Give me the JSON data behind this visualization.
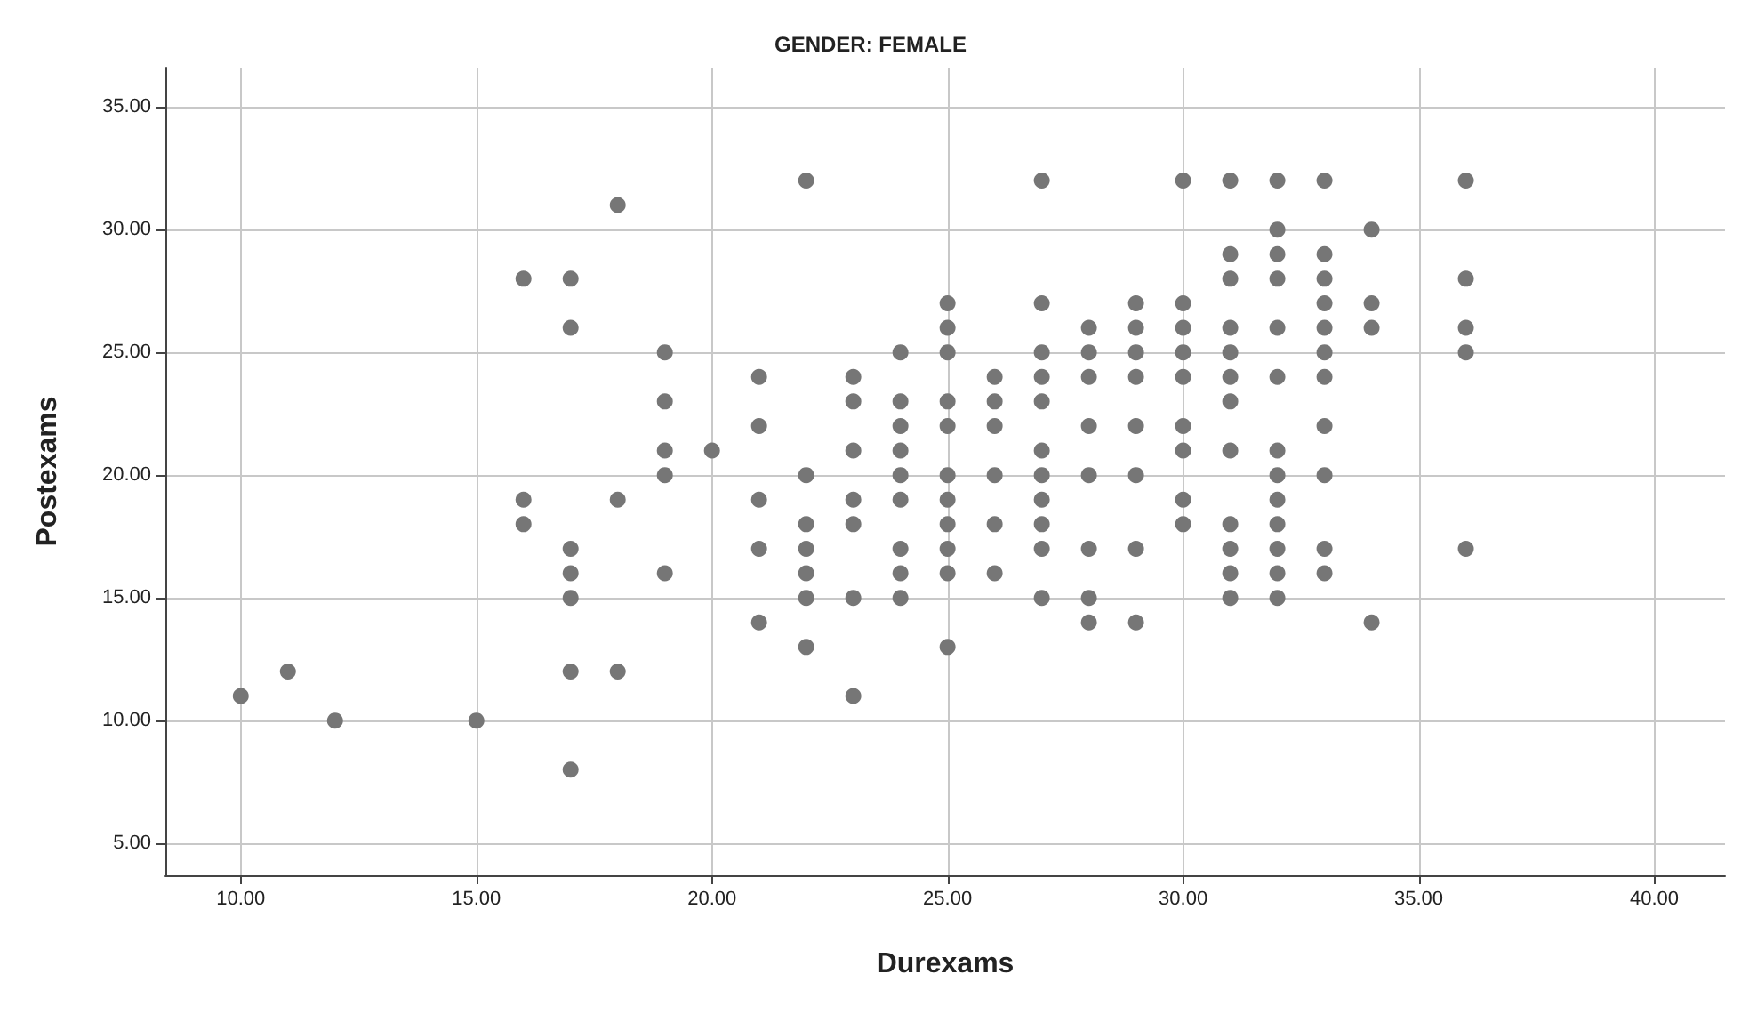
{
  "chart_data": {
    "type": "scatter",
    "title": "GENDER: FEMALE",
    "xlabel": "Durexams",
    "ylabel": "Postexams",
    "xlim": [
      8.4,
      41.5
    ],
    "ylim": [
      3.7,
      36.6
    ],
    "xticks": [
      {
        "value": 10,
        "label": "10.00"
      },
      {
        "value": 15,
        "label": "15.00"
      },
      {
        "value": 20,
        "label": "20.00"
      },
      {
        "value": 25,
        "label": "25.00"
      },
      {
        "value": 30,
        "label": "30.00"
      },
      {
        "value": 35,
        "label": "35.00"
      },
      {
        "value": 40,
        "label": "40.00"
      }
    ],
    "yticks": [
      {
        "value": 5,
        "label": "5.00"
      },
      {
        "value": 10,
        "label": "10.00"
      },
      {
        "value": 15,
        "label": "15.00"
      },
      {
        "value": 20,
        "label": "20.00"
      },
      {
        "value": 25,
        "label": "25.00"
      },
      {
        "value": 30,
        "label": "30.00"
      },
      {
        "value": 35,
        "label": "35.00"
      }
    ],
    "grid": true,
    "marker": "circle",
    "series": [
      {
        "color": "#767676",
        "x": [
          10,
          11,
          12,
          15,
          16,
          16,
          16,
          17,
          17,
          17,
          17,
          17,
          17,
          17,
          18,
          18,
          18,
          19,
          19,
          19,
          19,
          19,
          20,
          21,
          21,
          21,
          21,
          21,
          22,
          22,
          22,
          22,
          22,
          22,
          22,
          23,
          23,
          23,
          23,
          23,
          23,
          23,
          24,
          24,
          24,
          24,
          24,
          24,
          24,
          24,
          24,
          25,
          25,
          25,
          25,
          25,
          25,
          25,
          25,
          25,
          25,
          25,
          26,
          26,
          26,
          26,
          26,
          26,
          27,
          27,
          27,
          27,
          27,
          27,
          27,
          27,
          27,
          27,
          27,
          28,
          28,
          28,
          28,
          28,
          28,
          28,
          28,
          29,
          29,
          29,
          29,
          29,
          29,
          29,
          29,
          30,
          30,
          30,
          30,
          30,
          30,
          30,
          30,
          30,
          31,
          31,
          31,
          31,
          31,
          31,
          31,
          31,
          31,
          31,
          31,
          31,
          32,
          32,
          32,
          32,
          32,
          32,
          32,
          32,
          32,
          32,
          32,
          32,
          32,
          33,
          33,
          33,
          33,
          33,
          33,
          33,
          33,
          33,
          33,
          33,
          34,
          34,
          34,
          34,
          36,
          36,
          36,
          36,
          36
        ],
        "values": [
          11,
          12,
          10,
          10,
          28,
          19,
          18,
          28,
          26,
          17,
          16,
          15,
          12,
          8,
          31,
          19,
          12,
          25,
          23,
          21,
          20,
          16,
          21,
          24,
          22,
          19,
          17,
          14,
          32,
          20,
          18,
          17,
          16,
          15,
          13,
          24,
          23,
          21,
          19,
          18,
          15,
          11,
          25,
          23,
          22,
          21,
          20,
          19,
          17,
          16,
          15,
          27,
          26,
          25,
          23,
          22,
          20,
          19,
          18,
          17,
          16,
          13,
          24,
          23,
          22,
          20,
          18,
          16,
          32,
          27,
          25,
          24,
          23,
          21,
          20,
          19,
          18,
          17,
          15,
          26,
          25,
          24,
          22,
          20,
          17,
          15,
          14,
          27,
          26,
          25,
          24,
          22,
          20,
          17,
          14,
          32,
          27,
          26,
          25,
          24,
          22,
          21,
          19,
          18,
          32,
          29,
          28,
          26,
          25,
          24,
          23,
          21,
          18,
          17,
          16,
          15,
          32,
          30,
          29,
          28,
          26,
          24,
          21,
          20,
          19,
          18,
          17,
          16,
          15,
          32,
          29,
          28,
          27,
          26,
          25,
          24,
          22,
          20,
          17,
          16,
          30,
          27,
          26,
          14,
          32,
          28,
          26,
          25,
          17
        ]
      }
    ]
  }
}
